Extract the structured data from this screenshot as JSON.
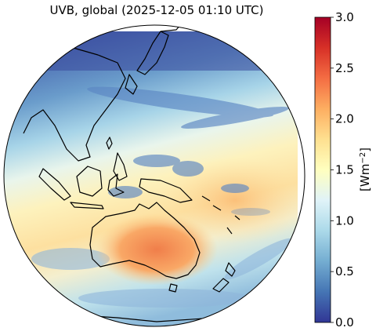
{
  "title": "UVB, global (2025-12-05 01:10 UTC)",
  "colorbar": {
    "label": "[Wm",
    "label_sup": "−2",
    "label_close": "]",
    "min": 0.0,
    "max": 3.0,
    "ticks": [
      "0.0",
      "0.5",
      "1.0",
      "1.5",
      "2.0",
      "2.5",
      "3.0"
    ],
    "colormap": "RdYlBu_r",
    "stops": [
      "#313695",
      "#4575b4",
      "#74add1",
      "#abd9e9",
      "#e0f3f8",
      "#ffffbf",
      "#fee090",
      "#fdae61",
      "#f46d43",
      "#d73027",
      "#a50026"
    ]
  },
  "map": {
    "projection": "orthographic",
    "center": "Western Pacific / Australia",
    "regions": [
      "East Asia",
      "Japan",
      "Philippines",
      "Indonesia",
      "Papua New Guinea",
      "Australia",
      "New Zealand",
      "Antarctica"
    ],
    "ocean_levels": {
      "north": 0.4,
      "tropics": 1.3,
      "south": 1.1
    },
    "australia_level": 2.1
  }
}
